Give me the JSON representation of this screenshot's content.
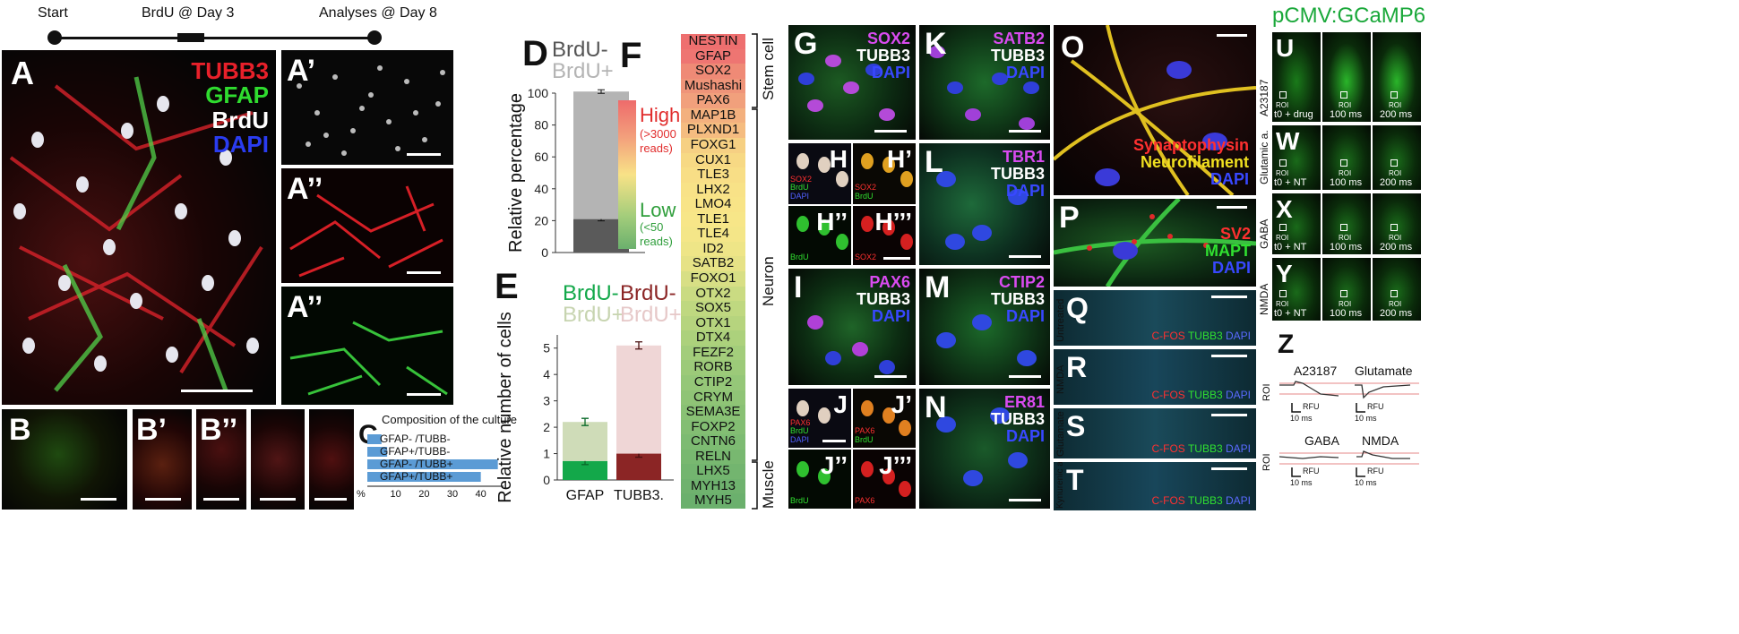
{
  "timeline": {
    "start": "Start",
    "brdu": "BrdU @ Day 3",
    "analyses": "Analyses @ Day 8"
  },
  "panelA": {
    "label": "A",
    "channels": [
      "TUBB3",
      "GFAP",
      "BrdU",
      "DAPI"
    ],
    "channel_colors": [
      "#e8202a",
      "#2fdc2f",
      "#ffffff",
      "#2a3cf0"
    ]
  },
  "panelA1": {
    "label": "A’"
  },
  "panelA2": {
    "label": "A’’"
  },
  "panelA3": {
    "label": "A’’"
  },
  "panelB": {
    "labels": [
      "B",
      "B’",
      "B’’"
    ]
  },
  "panelC": {
    "label": "C",
    "chart_data": {
      "type": "bar",
      "title": "Composition of the culture",
      "categories": [
        "GFAP- /TUBB-",
        "GFAP+/TUBB-",
        "GFAP- /TUBB+",
        "GFAP+/TUBB+"
      ],
      "values": [
        5,
        7,
        46,
        40
      ],
      "xlabel": "%",
      "xticks": [
        "10",
        "20",
        "30",
        "40"
      ],
      "xlim": [
        0,
        48
      ],
      "color": "#5b9bd5"
    }
  },
  "panelD": {
    "label": "D",
    "legend": [
      "BrdU-",
      "BrdU+"
    ],
    "chart_data": {
      "type": "bar",
      "categories": [
        ""
      ],
      "series": [
        {
          "name": "BrdU-",
          "values": [
            21
          ]
        },
        {
          "name": "BrdU+",
          "values": [
            80
          ]
        }
      ],
      "ylabel": "Relative percentage",
      "yticks": [
        "0",
        "20",
        "40",
        "60",
        "80",
        "100"
      ],
      "ylim": [
        0,
        100
      ],
      "colors": [
        "#5a5a5a",
        "#b4b4b4"
      ]
    }
  },
  "panelE": {
    "label": "E",
    "legend_gfap": [
      "BrdU-",
      "BrdU+"
    ],
    "legend_tubb3": [
      "BrdU-",
      "BrdU+"
    ],
    "chart_data": {
      "type": "bar",
      "categories": [
        "GFAP",
        "TUBB3."
      ],
      "series": [
        {
          "name": "BrdU-",
          "values": [
            0.72,
            1.0
          ]
        },
        {
          "name": "BrdU+",
          "values": [
            1.48,
            4.1
          ]
        }
      ],
      "ylabel": "Relative number of cells",
      "yticks": [
        "0",
        "1",
        "2",
        "3",
        "4",
        "5"
      ],
      "ylim": [
        0,
        5.5
      ],
      "colors_gfap": [
        "#13a84a",
        "#cfdcb8"
      ],
      "colors_tubb3": [
        "#8b2525",
        "#efd6d6"
      ]
    }
  },
  "panelF": {
    "label": "F",
    "scale_high": "High",
    "scale_high_sub": "(>3000\nreads)",
    "scale_low": "Low",
    "scale_low_sub": "(<50\nreads)",
    "genes": [
      "NESTIN",
      "GFAP",
      "SOX2",
      "Mushashi",
      "PAX6",
      "MAP1B",
      "PLXND1",
      "FOXG1",
      "CUX1",
      "TLE3",
      "LHX2",
      "LMO4",
      "TLE1",
      "TLE4",
      "ID2",
      "SATB2",
      "FOXO1",
      "OTX2",
      "SOX5",
      "OTX1",
      "DTX4",
      "FEZF2",
      "RORB",
      "CTIP2",
      "CRYM",
      "SEMA3E",
      "FOXP2",
      "CNTN6",
      "RELN",
      "LHX5",
      "MYH13",
      "MYH5"
    ],
    "gene_colors": [
      "#ee6f6f",
      "#ee7572",
      "#ef8a76",
      "#ef9479",
      "#f1a07c",
      "#f3b07e",
      "#f5bc80",
      "#f6d083",
      "#f7d984",
      "#f8de86",
      "#f8e287",
      "#f8e487",
      "#f7e688",
      "#f4e688",
      "#eee587",
      "#e6e286",
      "#d8df85",
      "#cadb82",
      "#bfd880",
      "#b6d47e",
      "#acd17c",
      "#a3cd7b",
      "#9cca79",
      "#95c778",
      "#8fc476",
      "#89c174",
      "#83be73",
      "#7dbb72",
      "#78b870",
      "#73b56f",
      "#6fb26e",
      "#6bb06d"
    ],
    "groups": [
      "Stem cell",
      "Neuron",
      "Muscle"
    ]
  },
  "panelsG_N": [
    {
      "label": "G",
      "channels": [
        "SOX2",
        "TUBB3",
        "DAPI"
      ]
    },
    {
      "label": "K",
      "channels": [
        "SATB2",
        "TUBB3",
        "DAPI"
      ]
    },
    {
      "label": "L",
      "channels": [
        "TBR1",
        "TUBB3",
        "DAPI"
      ]
    },
    {
      "label": "I",
      "channels": [
        "PAX6",
        "TUBB3",
        "DAPI"
      ]
    },
    {
      "label": "M",
      "channels": [
        "CTIP2",
        "TUBB3",
        "DAPI"
      ]
    },
    {
      "label": "N",
      "channels": [
        "ER81",
        "TUBB3",
        "DAPI"
      ]
    }
  ],
  "panelH": {
    "labels": [
      "H",
      "H’",
      "H’’",
      "H’’’"
    ],
    "ch_a": [
      "SOX2",
      "BrdU",
      "DAPI"
    ],
    "ch_b": [
      "SOX2",
      "BrdU"
    ],
    "ch_c": "BrdU",
    "ch_d": "SOX2"
  },
  "panelJ": {
    "labels": [
      "J",
      "J’",
      "J’’",
      "J’’’"
    ],
    "ch_a": [
      "PAX6",
      "BrdU",
      "DAPI"
    ],
    "ch_b": [
      "PAX6",
      "BrdU"
    ],
    "ch_c": "BrdU",
    "ch_d": "PAX6"
  },
  "panelO": {
    "label": "O",
    "channels": [
      "Synaptophysin",
      "Neurofilament",
      "DAPI"
    ]
  },
  "panelP": {
    "label": "P",
    "channels": [
      "SV2",
      "MAPT",
      "DAPI"
    ]
  },
  "panelsQ_T": [
    {
      "label": "Q",
      "side": "Untreated"
    },
    {
      "label": "R",
      "side": "NMDA"
    },
    {
      "label": "S",
      "side": "Glutamate"
    },
    {
      "label": "T",
      "side": "Kynurenic a. Glutamate"
    }
  ],
  "cfos": {
    "c1": "C-FOS",
    "c2": "TUBB3",
    "c3": "DAPI"
  },
  "panelU_Y": {
    "title": "pCMV:GCaMP6",
    "rows": [
      {
        "label": "U",
        "side": "A23187",
        "t0": "t0 + drug"
      },
      {
        "label": "W",
        "side": "Glutamic a.",
        "t0": "t0 + NT"
      },
      {
        "label": "X",
        "side": "GABA",
        "t0": "t0 + NT"
      },
      {
        "label": "Y",
        "side": "NMDA",
        "t0": "t0 + NT"
      }
    ],
    "roi": "ROI",
    "times": [
      "100 ms",
      "200 ms"
    ]
  },
  "panelZ": {
    "label": "Z",
    "traces": [
      "A23187",
      "Glutamate",
      "GABA",
      "NMDA"
    ],
    "ylabel": "ROI",
    "scale_y": "RFU",
    "scale_x": "10 ms"
  }
}
